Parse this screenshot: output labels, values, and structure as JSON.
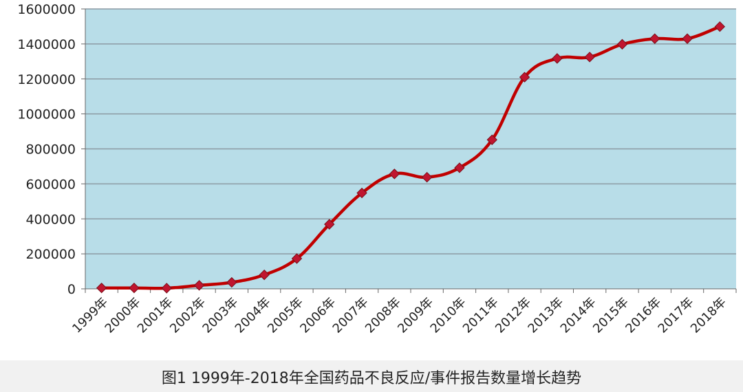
{
  "colors": {
    "plot_background": "#b8dde8",
    "gridline": "#8c9aa3",
    "line": "#c00000",
    "marker_fill": "#c0152f",
    "marker_edge": "#7a0f1a",
    "axis_text": "#222222",
    "caption_band": "#f1f1f1"
  },
  "caption": "图1 1999年-2018年全国药品不良反应/事件报告数量增长趋势",
  "chart_data": {
    "type": "line",
    "title": "",
    "xlabel": "",
    "ylabel": "",
    "categories": [
      "1999年",
      "2000年",
      "2001年",
      "2002年",
      "2003年",
      "2004年",
      "2005年",
      "2006年",
      "2007年",
      "2008年",
      "2009年",
      "2010年",
      "2011年",
      "2012年",
      "2013年",
      "2014年",
      "2015年",
      "2016年",
      "2017年",
      "2018年"
    ],
    "values": [
      5000,
      5000,
      4000,
      20000,
      37000,
      80000,
      173000,
      369000,
      548000,
      657000,
      638000,
      692000,
      852000,
      1210000,
      1317000,
      1325000,
      1398000,
      1430000,
      1430000,
      1499000
    ],
    "ylim": [
      0,
      1600000
    ],
    "yticks": [
      "0",
      "200000",
      "400000",
      "600000",
      "800000",
      "1000000",
      "1200000",
      "1400000",
      "1600000"
    ],
    "ytick_values": [
      0,
      200000,
      400000,
      600000,
      800000,
      1000000,
      1200000,
      1400000,
      1600000
    ],
    "grid": true,
    "legend": "none",
    "marker": "diamond"
  }
}
